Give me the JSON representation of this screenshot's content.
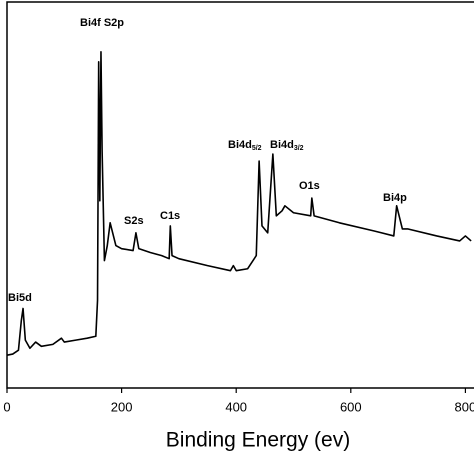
{
  "chart_data": {
    "type": "line",
    "xlabel": "Binding Energy (ev)",
    "x": [
      0,
      10,
      20,
      25,
      28,
      32,
      40,
      50,
      60,
      80,
      95,
      100,
      120,
      140,
      155,
      158,
      160,
      162,
      164,
      166,
      170,
      175,
      180,
      190,
      200,
      220,
      225,
      230,
      250,
      270,
      283,
      285,
      288,
      300,
      350,
      390,
      395,
      400,
      420,
      435,
      440,
      445,
      455,
      464,
      470,
      480,
      485,
      500,
      530,
      532,
      536,
      580,
      640,
      675,
      680,
      690,
      700,
      750,
      790,
      800,
      810
    ],
    "values": [
      8.5,
      8.8,
      9.8,
      17.5,
      20.6,
      12.4,
      10.3,
      11.9,
      10.8,
      11.3,
      12.9,
      11.9,
      12.4,
      12.9,
      13.4,
      22.7,
      84.5,
      48.5,
      87.1,
      61.3,
      33.0,
      36.9,
      42.8,
      36.9,
      36.1,
      35.6,
      40.2,
      36.1,
      35.1,
      34.3,
      33.5,
      42.0,
      34.3,
      33.5,
      31.7,
      30.4,
      31.7,
      30.4,
      30.9,
      34.3,
      58.8,
      42.0,
      40.2,
      60.6,
      44.6,
      45.9,
      47.2,
      45.4,
      44.6,
      49.2,
      44.6,
      42.8,
      40.7,
      39.4,
      47.2,
      41.2,
      41.2,
      39.4,
      38.1,
      39.4,
      38.1
    ],
    "color": "#000000",
    "xlim": [
      0,
      815
    ],
    "xticks": [
      0,
      200,
      400,
      600,
      800
    ],
    "ylim": [
      0,
      100
    ],
    "annotations": [
      {
        "text": "Bi5d"
      },
      {
        "text": "Bi4f S2p"
      },
      {
        "text": "S2s"
      },
      {
        "text": "C1s"
      },
      {
        "text": "Bi4d",
        "sub": "5/2"
      },
      {
        "text": "Bi4d",
        "sub": "3/2"
      },
      {
        "text": "O1s"
      },
      {
        "text": "Bi4p"
      }
    ]
  }
}
